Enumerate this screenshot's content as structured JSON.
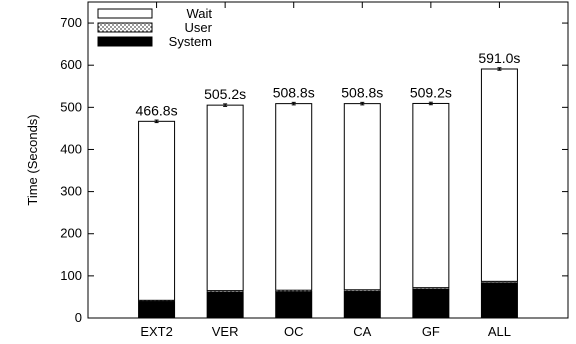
{
  "chart_data": {
    "type": "bar",
    "stacked": true,
    "categories": [
      "EXT2",
      "VER",
      "OC",
      "CA",
      "GF",
      "ALL"
    ],
    "series": [
      {
        "name": "Wait",
        "values": [
          424.8,
          440.2,
          442.8,
          441.8,
          437.2,
          504.0
        ],
        "color": "#ffffff"
      },
      {
        "name": "User",
        "values": [
          2,
          3,
          3,
          3,
          3,
          3
        ],
        "color": "#d8d8d8"
      },
      {
        "name": "System",
        "values": [
          40,
          62,
          63,
          64,
          69,
          84
        ],
        "color": "#000000"
      }
    ],
    "totals": [
      466.8,
      505.2,
      508.8,
      508.8,
      509.2,
      591.0
    ],
    "data_labels": [
      "466.8s",
      "505.2s",
      "508.8s",
      "508.8s",
      "509.2s",
      "591.0s"
    ],
    "error_bar": 3,
    "ylabel": "Time (Seconds)",
    "xlabel": "",
    "title": "",
    "ylim": [
      0,
      750
    ],
    "yticks": [
      0,
      100,
      200,
      300,
      400,
      500,
      600,
      700
    ],
    "legend_order": [
      "Wait",
      "User",
      "System"
    ],
    "legend_position": "top-left",
    "grid": false
  }
}
